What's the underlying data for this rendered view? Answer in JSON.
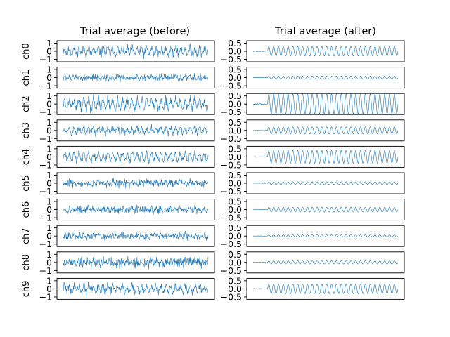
{
  "figure": {
    "line_color": "#1f77b4"
  },
  "chart_data": [
    {
      "type": "line",
      "title": "Trial average (before)",
      "ylim": [
        -1.3,
        1.3
      ],
      "yticks": [
        -1,
        0,
        1
      ],
      "ytick_labels": [
        "−1",
        "0",
        "1"
      ],
      "xticks": [],
      "grid": false,
      "legend": "none",
      "x": {
        "start": 0,
        "end": 1,
        "points": 400
      },
      "series": [
        {
          "label": "ch0",
          "noise": 0.45,
          "amp": 0.35,
          "freq": 30,
          "seed": 11
        },
        {
          "label": "ch1",
          "noise": 0.35,
          "amp": 0.1,
          "freq": 30,
          "seed": 12
        },
        {
          "label": "ch2",
          "noise": 0.45,
          "amp": 0.55,
          "freq": 30,
          "seed": 13
        },
        {
          "label": "ch3",
          "noise": 0.35,
          "amp": 0.3,
          "freq": 30,
          "seed": 14
        },
        {
          "label": "ch4",
          "noise": 0.35,
          "amp": 0.45,
          "freq": 30,
          "seed": 15
        },
        {
          "label": "ch5",
          "noise": 0.4,
          "amp": 0.1,
          "freq": 30,
          "seed": 16
        },
        {
          "label": "ch6",
          "noise": 0.38,
          "amp": 0.15,
          "freq": 30,
          "seed": 17
        },
        {
          "label": "ch7",
          "noise": 0.35,
          "amp": 0.08,
          "freq": 30,
          "seed": 18
        },
        {
          "label": "ch8",
          "noise": 0.55,
          "amp": 0.1,
          "freq": 30,
          "seed": 19
        },
        {
          "label": "ch9",
          "noise": 0.4,
          "amp": 0.35,
          "freq": 30,
          "seed": 20
        }
      ]
    },
    {
      "type": "line",
      "title": "Trial average (after)",
      "ylim": [
        -0.65,
        0.65
      ],
      "yticks": [
        -0.5,
        0.0,
        0.5
      ],
      "ytick_labels": [
        "−0.5",
        "0.0",
        "0.5"
      ],
      "xticks": [],
      "grid": false,
      "legend": "none",
      "x": {
        "start": 0,
        "end": 1,
        "points": 400
      },
      "onset": 0.1,
      "series": [
        {
          "label": "ch0",
          "amp": 0.3,
          "freq": 30
        },
        {
          "label": "ch1",
          "amp": 0.1,
          "freq": 30
        },
        {
          "label": "ch2",
          "amp": 0.62,
          "freq": 30
        },
        {
          "label": "ch3",
          "amp": 0.22,
          "freq": 30
        },
        {
          "label": "ch4",
          "amp": 0.4,
          "freq": 30
        },
        {
          "label": "ch5",
          "amp": 0.09,
          "freq": 30
        },
        {
          "label": "ch6",
          "amp": 0.15,
          "freq": 30
        },
        {
          "label": "ch7",
          "amp": 0.07,
          "freq": 30
        },
        {
          "label": "ch8",
          "amp": 0.1,
          "freq": 30
        },
        {
          "label": "ch9",
          "amp": 0.3,
          "freq": 30
        }
      ]
    }
  ]
}
